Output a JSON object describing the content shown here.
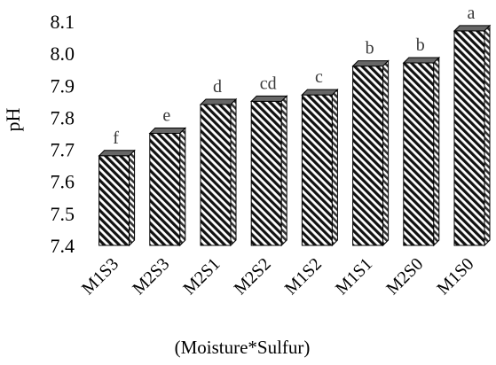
{
  "chart_data": {
    "type": "bar",
    "title": "",
    "ylabel": "pH",
    "xlabel": "(Moisture*Sulfur)",
    "ylim": [
      7.4,
      8.1
    ],
    "yticks": [
      7.4,
      7.5,
      7.6,
      7.7,
      7.8,
      7.9,
      8.0,
      8.1
    ],
    "ytick_labels": [
      "7.4",
      "7.5",
      "7.6",
      "7.7",
      "7.8",
      "7.9",
      "8.0",
      "8.1"
    ],
    "grid": false,
    "legend": "none",
    "categories": [
      "M1S3",
      "M2S3",
      "M2S1",
      "M2S2",
      "M1S2",
      "M1S1",
      "M2S0",
      "M1S0"
    ],
    "values": [
      7.68,
      7.75,
      7.84,
      7.85,
      7.87,
      7.96,
      7.97,
      8.07
    ],
    "significance_letters": [
      "f",
      "e",
      "d",
      "cd",
      "c",
      "b",
      "b",
      "a"
    ],
    "bar_pattern": "diagonal-hatch",
    "bar_color": "#000000",
    "bar_style": "3d"
  }
}
